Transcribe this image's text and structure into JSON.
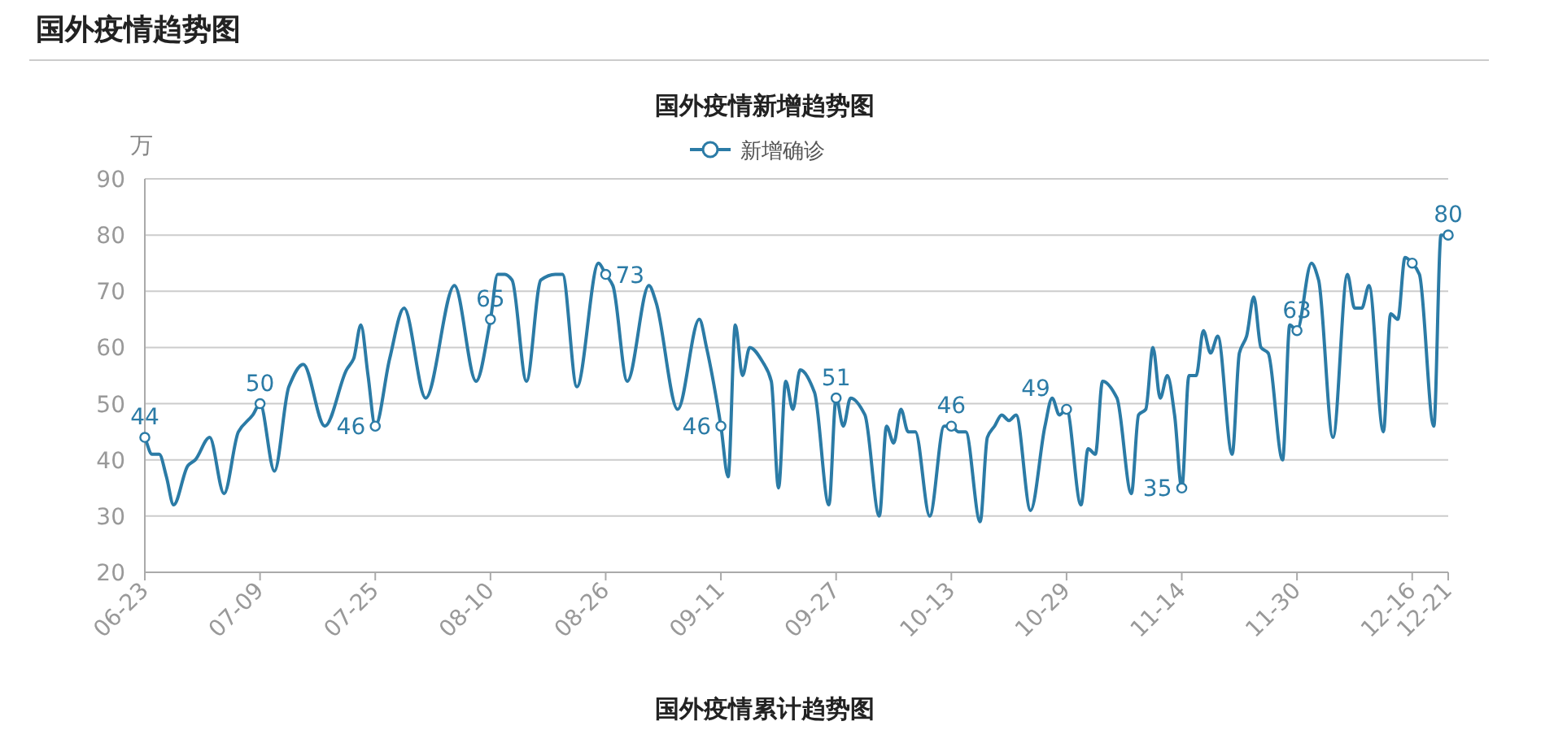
{
  "chart_data": {
    "type": "line",
    "title": "国外疫情新增趋势图",
    "ylabel": "万",
    "annotations": [
      "国外疫情趋势图",
      "国外疫情累计趋势图"
    ],
    "x": [
      "--06-23",
      "--06-24",
      "--06-25",
      "--06-26",
      "--06-27",
      "--06-29",
      "--06-30",
      "--07-02",
      "--07-04",
      "--07-06",
      "--07-08",
      "--07-09",
      "--07-11",
      "--07-13",
      "--07-15",
      "--07-18",
      "--07-21",
      "--07-22",
      "--07-23",
      "--07-24",
      "--07-25",
      "--07-27",
      "--07-29",
      "--08-01",
      "--08-05",
      "--08-08",
      "--08-10",
      "--08-11",
      "--08-12",
      "--08-13",
      "--08-15",
      "--08-17",
      "--08-19",
      "--08-20",
      "--08-22",
      "--08-25",
      "--08-26",
      "--08-27",
      "--08-29",
      "--09-01",
      "--09-02",
      "--09-05",
      "--09-08",
      "--09-09",
      "--09-11",
      "--09-12",
      "--09-13",
      "--09-14",
      "--09-15",
      "--09-17",
      "--09-18",
      "--09-19",
      "--09-20",
      "--09-21",
      "--09-22",
      "--09-24",
      "--09-26",
      "--09-27",
      "--09-28",
      "--09-29",
      "--10-01",
      "--10-03",
      "--10-04",
      "--10-05",
      "--10-06",
      "--10-07",
      "--10-08",
      "--10-10",
      "--10-12",
      "--10-13",
      "--10-14",
      "--10-15",
      "--10-17",
      "--10-18",
      "--10-19",
      "--10-20",
      "--10-21",
      "--10-22",
      "--10-24",
      "--10-26",
      "--10-27",
      "--10-28",
      "--10-29",
      "--10-31",
      "--11-01",
      "--11-02",
      "--11-03",
      "--11-05",
      "--11-07",
      "--11-08",
      "--11-09",
      "--11-10",
      "--11-11",
      "--11-12",
      "--11-13",
      "--11-14",
      "--11-15",
      "--11-16",
      "--11-17",
      "--11-18",
      "--11-19",
      "--11-21",
      "--11-22",
      "--11-23",
      "--11-24",
      "--11-25",
      "--11-26",
      "--11-28",
      "--11-29",
      "--11-30",
      "--12-02",
      "--12-03",
      "--12-05",
      "--12-07",
      "--12-08",
      "--12-09",
      "--12-10",
      "--12-12",
      "--12-13",
      "--12-14",
      "--12-15",
      "--12-16",
      "--12-17",
      "--12-19",
      "--12-20",
      "--12-21"
    ],
    "series": [
      {
        "name": "新增确诊",
        "color": "#2b7ba6",
        "values": [
          44,
          41,
          41,
          37,
          32,
          39,
          40,
          44,
          34,
          45,
          48,
          50,
          38,
          53,
          57,
          46,
          56,
          58,
          64,
          55,
          46,
          58,
          67,
          51,
          71,
          54,
          65,
          73,
          73,
          72,
          54,
          72,
          73,
          73,
          53,
          75,
          73,
          71,
          54,
          71,
          68,
          49,
          65,
          60,
          46,
          37,
          64,
          55,
          60,
          57,
          54,
          35,
          54,
          49,
          56,
          52,
          32,
          51,
          46,
          51,
          48,
          30,
          46,
          43,
          49,
          45,
          45,
          30,
          46,
          46,
          45,
          45,
          29,
          44,
          46,
          48,
          47,
          48,
          31,
          46,
          51,
          48,
          49,
          32,
          42,
          41,
          54,
          51,
          34,
          48,
          49,
          60,
          51,
          55,
          48,
          35,
          55,
          55,
          63,
          59,
          62,
          41,
          59,
          62,
          69,
          60,
          59,
          40,
          64,
          63,
          75,
          72,
          44,
          73,
          67,
          67,
          71,
          45,
          66,
          65,
          76,
          75,
          73,
          46,
          80,
          80
        ],
        "value_labels": [
          "44",
          null,
          null,
          null,
          null,
          null,
          null,
          null,
          null,
          null,
          null,
          "50",
          null,
          null,
          null,
          null,
          null,
          null,
          null,
          null,
          "46",
          null,
          null,
          null,
          null,
          null,
          "65",
          null,
          null,
          null,
          null,
          null,
          null,
          null,
          null,
          null,
          "73",
          null,
          null,
          null,
          null,
          null,
          null,
          null,
          "46",
          null,
          null,
          null,
          null,
          null,
          null,
          null,
          null,
          null,
          null,
          null,
          null,
          "51",
          null,
          null,
          null,
          null,
          null,
          null,
          null,
          null,
          null,
          null,
          null,
          "46",
          null,
          null,
          null,
          null,
          null,
          null,
          null,
          null,
          null,
          null,
          null,
          null,
          "49",
          null,
          null,
          null,
          null,
          null,
          null,
          null,
          null,
          null,
          null,
          null,
          null,
          "35",
          null,
          null,
          null,
          null,
          null,
          null,
          null,
          null,
          null,
          null,
          null,
          null,
          null,
          "63",
          null,
          null,
          null,
          null,
          null,
          null,
          null,
          null,
          null,
          null,
          null,
          null,
          null,
          null,
          null,
          "80"
        ]
      }
    ],
    "xlim": [
      "--06-23",
      "--12-21"
    ],
    "xticks": [
      {
        "value": "--06-23",
        "label": "06-23"
      },
      {
        "value": "--07-09",
        "label": "07-09"
      },
      {
        "value": "--07-25",
        "label": "07-25"
      },
      {
        "value": "--08-10",
        "label": "08-10"
      },
      {
        "value": "--08-26",
        "label": "08-26"
      },
      {
        "value": "--09-11",
        "label": "09-11"
      },
      {
        "value": "--09-27",
        "label": "09-27"
      },
      {
        "value": "--10-13",
        "label": "10-13"
      },
      {
        "value": "--10-29",
        "label": "10-29"
      },
      {
        "value": "--11-14",
        "label": "11-14"
      },
      {
        "value": "--11-30",
        "label": "11-30"
      },
      {
        "value": "--12-16",
        "label": "12-16"
      },
      {
        "value": "--12-21",
        "label": "12-21"
      }
    ],
    "ylim": [
      20,
      90
    ],
    "yticks": [
      20,
      30,
      40,
      50,
      60,
      70,
      80,
      90
    ],
    "grid": "y",
    "legend": "top"
  }
}
